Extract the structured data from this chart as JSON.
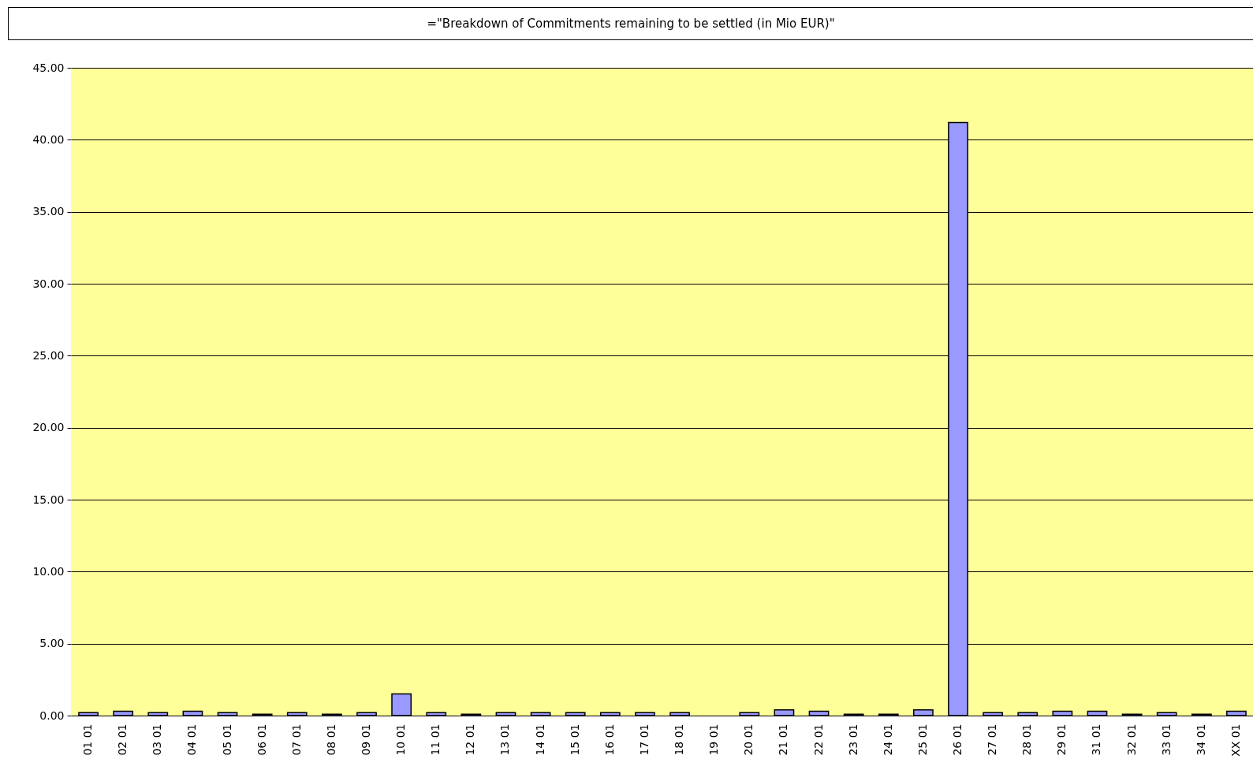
{
  "chart_data": {
    "type": "bar",
    "title": "=\"Breakdown of Commitments remaining to be settled (in Mio EUR)\"",
    "categories": [
      "01 01",
      "02 01",
      "03 01",
      "04 01",
      "05 01",
      "06 01",
      "07 01",
      "08 01",
      "09 01",
      "10 01",
      "11 01",
      "12 01",
      "13 01",
      "14 01",
      "15 01",
      "16 01",
      "17 01",
      "18 01",
      "19 01",
      "20 01",
      "21 01",
      "22 01",
      "23 01",
      "24 01",
      "25 01",
      "26 01",
      "27 01",
      "28 01",
      "29 01",
      "31 01",
      "32 01",
      "33 01",
      "34 01",
      "XX 01"
    ],
    "values": [
      0.2,
      0.3,
      0.2,
      0.3,
      0.2,
      0.1,
      0.2,
      0.1,
      0.2,
      1.5,
      0.2,
      0.1,
      0.2,
      0.2,
      0.2,
      0.2,
      0.2,
      0.2,
      0,
      0.2,
      0.4,
      0.3,
      0.1,
      0.1,
      0.4,
      41.2,
      0.2,
      0.2,
      0.3,
      0.3,
      0.1,
      0.2,
      0.1,
      0.3
    ],
    "color": "#9999ff",
    "ylim": [
      0,
      45
    ],
    "yticks": [
      {
        "value": 0,
        "label": "0.00"
      },
      {
        "value": 5,
        "label": "5.00"
      },
      {
        "value": 10,
        "label": "10.00"
      },
      {
        "value": 15,
        "label": "15.00"
      },
      {
        "value": 20,
        "label": "20.00"
      },
      {
        "value": 25,
        "label": "25.00"
      },
      {
        "value": 30,
        "label": "30.00"
      },
      {
        "value": 35,
        "label": "35.00"
      },
      {
        "value": 40,
        "label": "40.00"
      },
      {
        "value": 45,
        "label": "45.00"
      }
    ],
    "grid": true
  }
}
